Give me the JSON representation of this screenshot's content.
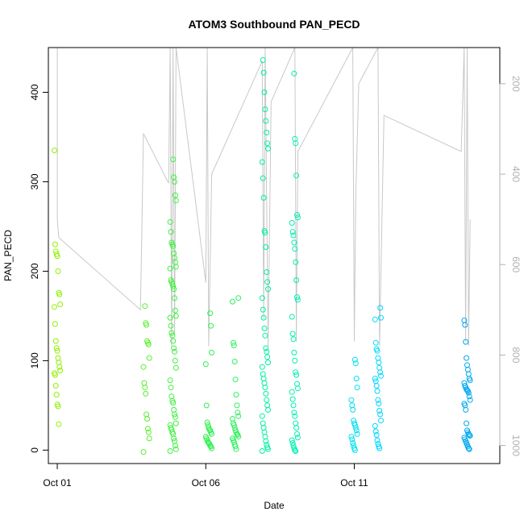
{
  "chart_data": {
    "type": "scatter",
    "title": "ATOM3 Southbound PAN_PECD",
    "xlabel": "Date",
    "ylabel": "PAN_PECD",
    "x_ticks": [
      {
        "label": "Oct 01",
        "day": 1
      },
      {
        "label": "Oct 06",
        "day": 6
      },
      {
        "label": "Oct 11",
        "day": 11
      }
    ],
    "xlim_days": [
      0.7,
      15.9
    ],
    "y_ticks": [
      0,
      100,
      200,
      300,
      400
    ],
    "ylim": [
      -15,
      450
    ],
    "right_axis": {
      "color": "#b0b0b0",
      "ticks": [
        200,
        400,
        600,
        800,
        1000
      ],
      "ylim_reversed": [
        120,
        1040
      ]
    },
    "series_color_range": [
      "#80ff00",
      "#00ff40",
      "#00ffc0",
      "#00c0ff",
      "#00a0ff"
    ],
    "point_clusters": [
      {
        "day": 1.0,
        "values": [
          335,
          230,
          222,
          219,
          217,
          200,
          176,
          174,
          163,
          160,
          141,
          122,
          114,
          111,
          103,
          98,
          93,
          89,
          86,
          84,
          72,
          62,
          51,
          49,
          29
        ],
        "color": "#90f000"
      },
      {
        "day": 4.0,
        "values": [
          161,
          142,
          140,
          122,
          120,
          118,
          103,
          93,
          75,
          70,
          63,
          40,
          35,
          24,
          20,
          13,
          -2
        ],
        "color": "#5af030"
      },
      {
        "day": 4.9,
        "values": [
          325,
          305,
          300,
          285,
          279,
          255,
          244,
          232,
          230,
          228,
          220,
          215,
          210,
          205,
          203,
          190,
          188,
          186,
          183,
          180,
          170,
          156,
          150,
          148,
          139,
          131,
          128,
          122,
          114,
          110,
          100,
          92,
          78,
          70,
          60,
          55,
          53,
          45,
          40,
          37,
          30,
          28,
          25,
          23,
          20,
          18,
          13,
          10,
          5,
          1,
          -1
        ],
        "color": "#40f040"
      },
      {
        "day": 6.1,
        "values": [
          153,
          139,
          109,
          96,
          50,
          31,
          28,
          25,
          23,
          22,
          20,
          18,
          15,
          13,
          11,
          9,
          8,
          7,
          5,
          4,
          2
        ],
        "color": "#30f050"
      },
      {
        "day": 7.0,
        "values": [
          170,
          166,
          120,
          117,
          99,
          79,
          62,
          50,
          42,
          38,
          35,
          30,
          28,
          25,
          22,
          20,
          18,
          17,
          15,
          13,
          11,
          9,
          6,
          4,
          1
        ],
        "color": "#30f060"
      },
      {
        "day": 8.0,
        "values": [
          436,
          422,
          400,
          381,
          368,
          355,
          343,
          337,
          322,
          304,
          282,
          245,
          243,
          227,
          199,
          188,
          180,
          170,
          157,
          148,
          136,
          128,
          114,
          110,
          104,
          98,
          93,
          85,
          80,
          75,
          70,
          63,
          56,
          50,
          45,
          38,
          30,
          25,
          20,
          15,
          10,
          6,
          3,
          1,
          -1
        ],
        "color": "#00f0a0"
      },
      {
        "day": 9.0,
        "values": [
          421,
          348,
          343,
          307,
          263,
          260,
          254,
          244,
          240,
          232,
          225,
          210,
          190,
          171,
          168,
          149,
          130,
          124,
          109,
          100,
          87,
          84,
          74,
          69,
          65,
          57,
          50,
          42,
          38,
          30,
          25,
          18,
          14,
          11,
          8,
          5,
          2,
          0,
          -1
        ],
        "color": "#00f0b0"
      },
      {
        "day": 11.0,
        "values": [
          101,
          97,
          80,
          70,
          56,
          50,
          45,
          33,
          30,
          28,
          25,
          22,
          18,
          15,
          12,
          8,
          5,
          2,
          0
        ],
        "color": "#00e0f0"
      },
      {
        "day": 11.8,
        "values": [
          159,
          148,
          146,
          120,
          113,
          111,
          103,
          98,
          92,
          87,
          83,
          80,
          77,
          72,
          66,
          56,
          52,
          44,
          40,
          33,
          27,
          21,
          17,
          11,
          7,
          4,
          2
        ],
        "color": "#00d8ff"
      },
      {
        "day": 14.8,
        "values": [
          145,
          140,
          121,
          103,
          95,
          90,
          85,
          80,
          78,
          75,
          72,
          70,
          68,
          67,
          66,
          64,
          60,
          56,
          52,
          50,
          45,
          30,
          22,
          20,
          18,
          17,
          16,
          14,
          12,
          10,
          8,
          6,
          4,
          2,
          1
        ],
        "color": "#00a8f0"
      }
    ],
    "altitude_trace": [
      {
        "day": 1.0,
        "alt": 120
      },
      {
        "day": 1.0,
        "alt": 500
      },
      {
        "day": 1.05,
        "alt": 540
      },
      {
        "day": 3.8,
        "alt": 700
      },
      {
        "day": 3.85,
        "alt": 510
      },
      {
        "day": 3.9,
        "alt": 310
      },
      {
        "day": 4.75,
        "alt": 420
      },
      {
        "day": 4.8,
        "alt": 120
      },
      {
        "day": 4.85,
        "alt": 780
      },
      {
        "day": 4.9,
        "alt": 120
      },
      {
        "day": 4.95,
        "alt": 760
      },
      {
        "day": 5.0,
        "alt": 120
      },
      {
        "day": 6.0,
        "alt": 640
      },
      {
        "day": 6.05,
        "alt": 120
      },
      {
        "day": 6.1,
        "alt": 780
      },
      {
        "day": 6.2,
        "alt": 400
      },
      {
        "day": 7.9,
        "alt": 150
      },
      {
        "day": 7.95,
        "alt": 720
      },
      {
        "day": 8.0,
        "alt": 120
      },
      {
        "day": 8.1,
        "alt": 780
      },
      {
        "day": 8.2,
        "alt": 240
      },
      {
        "day": 9.0,
        "alt": 120
      },
      {
        "day": 9.05,
        "alt": 770
      },
      {
        "day": 9.1,
        "alt": 350
      },
      {
        "day": 10.95,
        "alt": 120
      },
      {
        "day": 11.0,
        "alt": 770
      },
      {
        "day": 11.05,
        "alt": 450
      },
      {
        "day": 11.15,
        "alt": 200
      },
      {
        "day": 11.8,
        "alt": 120
      },
      {
        "day": 11.85,
        "alt": 780
      },
      {
        "day": 12.0,
        "alt": 270
      },
      {
        "day": 14.6,
        "alt": 350
      },
      {
        "day": 14.7,
        "alt": 120
      },
      {
        "day": 14.75,
        "alt": 770
      },
      {
        "day": 14.8,
        "alt": 120
      },
      {
        "day": 14.85,
        "alt": 780
      },
      {
        "day": 14.9,
        "alt": 500
      }
    ]
  }
}
